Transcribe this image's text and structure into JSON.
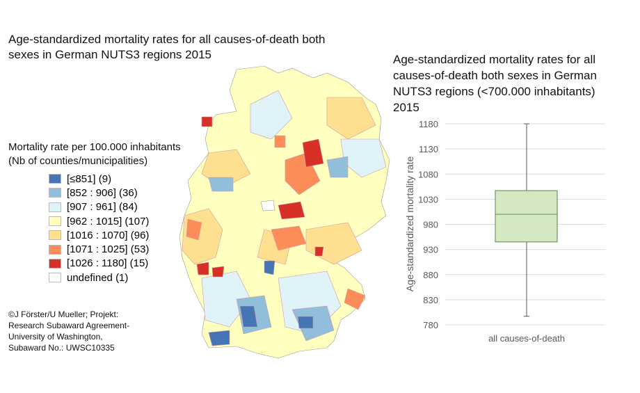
{
  "map": {
    "title": "Age-standardized mortality rates for all causes-of-death both sexes in German NUTS3 regions 2015",
    "legend_title_1": "Mortality rate per 100.000 inhabitants",
    "legend_title_2": "(Nb of counties/municipalities)",
    "legend": [
      {
        "label": "[≤851] (9)",
        "color": "#4575b4"
      },
      {
        "label": "[852 : 906] (36)",
        "color": "#91bfdb"
      },
      {
        "label": "[907 : 961] (84)",
        "color": "#e0f3f8"
      },
      {
        "label": "[962 : 1015] (107)",
        "color": "#ffffbf"
      },
      {
        "label": "[1016 : 1070] (96)",
        "color": "#fee090"
      },
      {
        "label": "[1071 : 1025] (53)",
        "color": "#fc8d59"
      },
      {
        "label": "[1026 : 1180] (15)",
        "color": "#d73027"
      },
      {
        "label": "undefined (1)",
        "color": "#ffffff"
      }
    ],
    "credit": [
      "©J Förster/U Mueller; Projekt:",
      "Research Subaward Agreement-",
      "University of Washington,",
      "Subaward No.: UWSC10335"
    ]
  },
  "chart_data": {
    "type": "box",
    "title": "Age-standardized mortality rates for all causes-of-death both sexes in German NUTS3 regions (<700.000 inhabitants) 2015",
    "ylabel": "Age-standardized  mortality rate",
    "xlabel": "",
    "categories": [
      "all causes-of-death"
    ],
    "ylim": [
      780,
      1180
    ],
    "yticks": [
      780,
      830,
      880,
      930,
      980,
      1030,
      1080,
      1130,
      1180
    ],
    "grid": true,
    "box": {
      "min": 797,
      "q1": 945,
      "median": 1000,
      "q3": 1047,
      "max": 1180
    },
    "fill": "#d5e8c4",
    "stroke": "#70965a"
  }
}
